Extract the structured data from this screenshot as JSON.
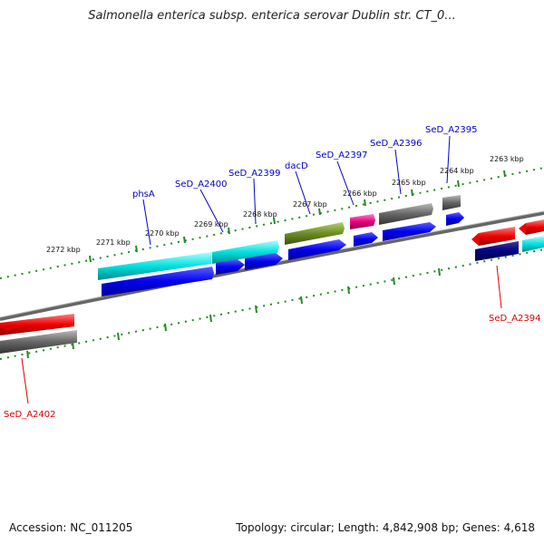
{
  "title": "Salmonella enterica subsp. enterica serovar Dublin str. CT_0...",
  "footer": {
    "accession": "Accession: NC_011205",
    "summary": "Topology: circular; Length: 4,842,908 bp; Genes: 4,618"
  },
  "ticks": [
    "2272 kbp",
    "2271 kbp",
    "2270 kbp",
    "2269 kbp",
    "2268 kbp",
    "2267 kbp",
    "2266 kbp",
    "2265 kbp",
    "2264 kbp",
    "2263 kbp"
  ],
  "genes": {
    "phsA": "phsA",
    "SeD_A2400": "SeD_A2400",
    "SeD_A2399": "SeD_A2399",
    "dacD": "dacD",
    "SeD_A2397": "SeD_A2397",
    "SeD_A2396": "SeD_A2396",
    "SeD_A2395": "SeD_A2395",
    "SeD_A2394": "SeD_A2394",
    "SeD_A2402": "SeD_A2402"
  },
  "colors": {
    "cds_blue": "#0000ee",
    "cds_navy": "#000080",
    "rna_red": "#ee0000",
    "cyan": "#00dddd",
    "olive": "#6b8e23",
    "pink": "#e6007e",
    "gray": "#666666",
    "tick_green": "#228b22",
    "label_blue": "#0000cc",
    "label_red": "#dd0000"
  }
}
